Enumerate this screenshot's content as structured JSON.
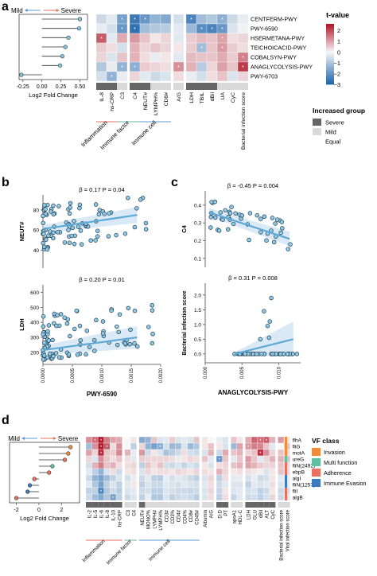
{
  "panels": {
    "a": "a",
    "b": "b",
    "c": "c",
    "d": "d"
  },
  "colors": {
    "heat_high": "#b2182b",
    "heat_mid": "#f7f7f7",
    "heat_low": "#2166ac",
    "severe": "#666666",
    "mild": "#d9d9d9",
    "line_blue": "#5fa9d6",
    "point_fill": "#8ec9e6",
    "band": "#cfe3f3",
    "red_line": "#e8725f",
    "green_line": "#66b8a0",
    "blue_line": "#5b9bd5",
    "vf_invasion": "#f08c3a",
    "vf_multi": "#5fbfa0",
    "vf_adherence": "#e8725f",
    "vf_immune": "#3b7bbf"
  },
  "chart_data": [
    {
      "id": "a_lollipop",
      "type": "scatter",
      "direction_left": "Mild",
      "direction_right": "Severe",
      "xlabel": "Log2 Fold Change",
      "xticks": [
        "-0.25",
        "0.00",
        "0.25",
        "0.50"
      ],
      "xlim": [
        -0.3,
        0.6
      ],
      "values": [
        0.5,
        0.49,
        0.35,
        0.31,
        0.27,
        0.24,
        -0.27
      ]
    },
    {
      "id": "a_heatmap",
      "type": "heatmap",
      "rows": [
        "CENTFERM-PWY",
        "PWY-6590",
        "HSERMETANA-PWY",
        "TEICHOICACID-PWY",
        "COBALSYN-PWY",
        "ANAGLYCOLYSIS-PWY",
        "PWY-6703"
      ],
      "columns": [
        "IL-8",
        "hs-CRP",
        "C3",
        "C4",
        "NEUT#",
        "LYMPH%",
        "CD8#",
        "A/G",
        "LDH",
        "TBIL",
        "dBil",
        "UA",
        "CyC",
        "Bacterial infection score"
      ],
      "col_groups": [
        "Inflammation",
        "Immune factor",
        "Immune cell"
      ],
      "values": [
        [
          -0.6,
          -0.3,
          -1.8,
          -2.6,
          -2.0,
          -1.4,
          -1.6,
          -0.5,
          -2.4,
          -1.2,
          -1.0,
          -1.5,
          -0.6,
          -0.2
        ],
        [
          -0.2,
          -0.5,
          -2.0,
          -2.8,
          -1.2,
          -1.0,
          -0.9,
          -0.3,
          -1.3,
          -2.2,
          -2.4,
          -2.0,
          -0.4,
          -0.1
        ],
        [
          1.8,
          -0.3,
          0.9,
          1.1,
          0.6,
          0.2,
          0.4,
          -0.3,
          0.5,
          0.7,
          0.6,
          1.0,
          0.3,
          0.4
        ],
        [
          0.5,
          0.3,
          -0.5,
          0.8,
          0.4,
          0.6,
          0.4,
          0.2,
          0.5,
          -1.2,
          0.6,
          1.1,
          0.5,
          0.3
        ],
        [
          0.4,
          -0.4,
          0.6,
          0.8,
          0.3,
          -0.2,
          0.2,
          -0.3,
          0.7,
          0.6,
          0.6,
          0.9,
          0.5,
          1.4
        ],
        [
          -1.0,
          -0.2,
          -1.4,
          -1.5,
          0.5,
          0.4,
          0.3,
          1.2,
          0.8,
          -0.9,
          0.4,
          1.0,
          0.6,
          2.2
        ],
        [
          -0.5,
          -1.4,
          -0.2,
          0.4,
          -0.3,
          -0.6,
          -0.4,
          0.3,
          -0.2,
          -0.5,
          0.3,
          0.6,
          -0.4,
          0.4
        ]
      ],
      "stars": [
        [
          0,
          2
        ],
        [
          0,
          3
        ],
        [
          0,
          4
        ],
        [
          0,
          8
        ],
        [
          0,
          11
        ],
        [
          1,
          2
        ],
        [
          1,
          3
        ],
        [
          1,
          9
        ],
        [
          1,
          10
        ],
        [
          1,
          11
        ],
        [
          2,
          0
        ],
        [
          2,
          11
        ],
        [
          3,
          9
        ],
        [
          3,
          11
        ],
        [
          4,
          13
        ],
        [
          5,
          2
        ],
        [
          5,
          3
        ],
        [
          5,
          7
        ],
        [
          5,
          13
        ],
        [
          6,
          1
        ]
      ],
      "legend_title": "t-value",
      "legend_ticks": [
        "2",
        "1",
        "0",
        "−1",
        "−2",
        "−3"
      ],
      "group_bar": [
        "Severe",
        "Severe",
        "Mild",
        "Severe",
        "Severe",
        "Mild",
        "Mild",
        "Mild",
        "Severe",
        "Severe",
        "Severe",
        "Mild",
        "Mild",
        "Mild"
      ]
    },
    {
      "id": "b_top",
      "type": "scatter",
      "annotation": "β = 0.17 P = 0.04",
      "ylabel": "NEUT#",
      "yticks": [
        "40",
        "60",
        "80"
      ],
      "ylim": [
        22,
        95
      ],
      "xlim": [
        0,
        0.002
      ],
      "fit": [
        [
          0,
          61
        ],
        [
          0.0016,
          75
        ]
      ]
    },
    {
      "id": "b_bottom",
      "type": "scatter",
      "annotation": "β = 0.20 P = 0.01",
      "ylabel": "LDH",
      "xlabel": "PWY-6590",
      "yticks": [
        "200",
        "300",
        "400",
        "500",
        "600"
      ],
      "ylim": [
        120,
        650
      ],
      "xticks": [
        "0.0000",
        "0.0005",
        "0.0010",
        "0.0015",
        "0.0020"
      ],
      "xlim": [
        0,
        0.002
      ],
      "fit": [
        [
          0,
          215
        ],
        [
          0.0016,
          300
        ]
      ]
    },
    {
      "id": "c_top",
      "type": "scatter",
      "annotation": "β = -0.45 P = 0.004",
      "ylabel": "C4",
      "yticks": [
        "0.1",
        "0.2",
        "0.3",
        "0.4"
      ],
      "ylim": [
        0.05,
        0.48
      ],
      "xlim": [
        0,
        0.013
      ],
      "fit": [
        [
          0.0005,
          0.36
        ],
        [
          0.0115,
          0.21
        ]
      ]
    },
    {
      "id": "c_bottom",
      "type": "scatter",
      "annotation": "β = 0.31 P = 0.008",
      "ylabel": "Bacterial infection score",
      "xlabel": "ANAGLYCOLYSIS-PWY",
      "yticks": [
        "0.0",
        "0.5",
        "1.0",
        "1.5",
        "2.0"
      ],
      "ylim": [
        -0.3,
        2.4
      ],
      "xticks": [
        "0.000",
        "0.005",
        "0.010"
      ],
      "xlim": [
        0,
        0.013
      ],
      "fit": [
        [
          0.004,
          0.0
        ],
        [
          0.012,
          0.5
        ]
      ]
    },
    {
      "id": "d_lollipop",
      "type": "scatter",
      "direction_left": "Mild",
      "direction_right": "Severe",
      "xlabel": "Log2 Fold Change",
      "xticks": [
        "-2",
        "0",
        "2"
      ],
      "xlim": [
        -2.6,
        3.6
      ],
      "values": [
        2.8,
        2.6,
        2.3,
        1.2,
        0.9,
        -0.4,
        -0.8,
        -1.0,
        -2.0
      ],
      "point_colors": [
        "#f08c3a",
        "#f08c3a",
        "#e8725f",
        "#5fbfa0",
        "#e8725f",
        "#e8725f",
        "#3b7bbf",
        "#3b7bbf",
        "#e8725f"
      ]
    },
    {
      "id": "d_heatmap",
      "type": "heatmap",
      "rows": [
        "flhA",
        "fliG",
        "motA",
        "ureG",
        "fliN(2492)",
        "ebpB",
        "algI",
        "fliN(1257)",
        "fliI",
        "algB"
      ],
      "row_class": [
        "Invasion",
        "Invasion",
        "Invasion",
        "Multi function",
        "Adherence",
        "Adherence",
        "Immune Evasion",
        "Immune Evasion",
        "Adherence",
        "Adherence"
      ],
      "columns": [
        "IL-2",
        "IL-5",
        "IL-6",
        "IL-8",
        "IL-10",
        "hs-CRP",
        "C3",
        "C4",
        "NEUT#",
        "MONO%",
        "LYMPH#",
        "LYMPH%",
        "CD3#",
        "CD3%",
        "CD4#",
        "CD4%",
        "CD8#",
        "CD45#",
        "Albumin",
        "A/G",
        "D-D",
        "PT",
        "apoA1",
        "HDL-C",
        "LDH",
        "GLU",
        "dBil",
        "ALT",
        "CyC",
        "Bacterial infection score",
        "Viral infection score"
      ],
      "col_groups": [
        "Inflammation",
        "Immune factor",
        "Immune cell"
      ],
      "values": [
        [
          1.2,
          1.6,
          2.6,
          1.4,
          1.0,
          0.9,
          0.0,
          0.2,
          -1.6,
          -1.4,
          0.6,
          -0.4,
          -0.3,
          0.5,
          -0.4,
          -0.3,
          -0.4,
          0.6,
          0.2,
          0.0,
          -0.2,
          -0.4,
          0.6,
          0.2,
          0.9,
          1.7,
          1.6,
          1.8,
          0.8,
          1.1,
          0.2
        ],
        [
          -1.2,
          1.2,
          2.6,
          1.8,
          0.3,
          1.2,
          0.0,
          -0.8,
          0.4,
          -1.4,
          -1.8,
          -1.5,
          -0.5,
          -1.3,
          -1.2,
          -0.4,
          -1.3,
          -1.0,
          0.2,
          0.6,
          0.2,
          -0.4,
          -1.3,
          1.0,
          1.1,
          1.4,
          1.3,
          0.6,
          -0.3,
          0.0,
          0.6
        ],
        [
          1.0,
          0.4,
          2.4,
          0.6,
          0.5,
          1.3,
          0.8,
          -0.2,
          1.1,
          -0.6,
          0.2,
          -0.4,
          -1.1,
          -0.9,
          -0.6,
          0.3,
          -0.5,
          -0.6,
          -0.4,
          0.8,
          -0.6,
          0.9,
          0.6,
          0.8,
          0.4,
          0.6,
          2.3,
          1.2,
          0.4,
          0.6,
          0.3
        ],
        [
          0.4,
          -0.4,
          1.2,
          0.6,
          0.3,
          0.6,
          0.3,
          -0.3,
          0.5,
          0.4,
          0.4,
          0.4,
          0.4,
          0.3,
          -0.2,
          0.2,
          0.4,
          0.3,
          0.6,
          -0.3,
          -2.0,
          0.6,
          -0.3,
          0.6,
          1.1,
          0.6,
          -0.3,
          0.4,
          0.8,
          0.8,
          0.7
        ],
        [
          -0.5,
          0.8,
          1.4,
          0.6,
          0.8,
          0.3,
          0.3,
          0.4,
          -0.8,
          0.6,
          0.3,
          0.6,
          -0.5,
          -0.6,
          -0.4,
          -0.7,
          -0.4,
          -0.6,
          0.2,
          -0.4,
          0.3,
          0.4,
          0.6,
          0.8,
          1.0,
          0.8,
          0.5,
          0.4,
          0.4,
          0.6,
          0.3
        ],
        [
          -0.3,
          -0.8,
          -1.4,
          -0.4,
          0.3,
          -0.6,
          0.2,
          0.3,
          -0.4,
          0.4,
          0.2,
          0.3,
          0.3,
          0.2,
          0.4,
          0.3,
          0.2,
          0.4,
          0.3,
          0.2,
          0.8,
          0.4,
          0.2,
          0.3,
          0.3,
          0.2,
          0.1,
          -0.4,
          0.2,
          0.6,
          0.3
        ],
        [
          -0.6,
          -1.4,
          -1.8,
          -1.2,
          -0.8,
          -0.4,
          -0.5,
          -0.2,
          -0.6,
          -0.3,
          -0.8,
          -0.9,
          -0.2,
          -0.5,
          -0.3,
          -0.4,
          -0.6,
          -0.8,
          -0.4,
          0.4,
          -0.8,
          0.3,
          -0.3,
          -0.2,
          -0.5,
          -0.2,
          -0.6,
          -0.5,
          0.2,
          -0.3,
          0.2
        ],
        [
          -0.3,
          -1.0,
          -1.8,
          -0.8,
          -0.4,
          -0.8,
          -0.3,
          0.2,
          -0.8,
          -0.4,
          -0.6,
          -0.6,
          -0.3,
          -0.4,
          -0.5,
          -0.3,
          -0.4,
          -0.5,
          -0.3,
          0.3,
          -0.6,
          -0.3,
          -0.4,
          -0.4,
          -0.8,
          -0.3,
          -0.4,
          -0.3,
          0.3,
          -0.4,
          -0.3
        ],
        [
          -0.8,
          -0.8,
          -2.4,
          -1.0,
          -0.6,
          -0.9,
          -0.4,
          -0.3,
          -0.6,
          -0.5,
          -0.8,
          -0.8,
          -0.4,
          -0.5,
          -0.6,
          -0.6,
          -0.7,
          -0.6,
          -0.4,
          0.4,
          -0.7,
          0.2,
          -0.4,
          -0.3,
          -0.5,
          -0.4,
          -0.8,
          -0.6,
          0.2,
          -0.6,
          -0.5
        ],
        [
          -0.6,
          -1.2,
          -1.6,
          -1.0,
          -1.8,
          -0.8,
          -0.6,
          -0.4,
          -0.8,
          -0.2,
          -1.0,
          -1.0,
          -0.4,
          -0.8,
          -0.6,
          -0.5,
          -0.6,
          -0.9,
          -0.4,
          0.3,
          -0.8,
          0.3,
          -0.7,
          -0.3,
          -0.6,
          -0.5,
          -0.8,
          -0.5,
          0.4,
          -0.6,
          -0.3
        ]
      ],
      "stars": [
        [
          0,
          1
        ],
        [
          0,
          2
        ],
        [
          0,
          26
        ],
        [
          0,
          27
        ],
        [
          1,
          2
        ],
        [
          1,
          3
        ],
        [
          1,
          11
        ],
        [
          1,
          24
        ],
        [
          2,
          2
        ],
        [
          2,
          26
        ],
        [
          3,
          20
        ],
        [
          8,
          2
        ],
        [
          9,
          4
        ]
      ],
      "group_bar": [
        "Severe",
        "Severe",
        "Severe",
        "Severe",
        "Severe",
        "Severe",
        "Mild",
        "Mild",
        "Severe",
        "Mild",
        "Mild",
        "Mild",
        "Mild",
        "Mild",
        "Mild",
        "Mild",
        "Mild",
        "Mild",
        "Mild",
        "Mild",
        "Severe",
        "Severe",
        "Mild",
        "Mild",
        "Severe",
        "Severe",
        "Severe",
        "Severe",
        "Severe",
        "Mild",
        "Mild"
      ]
    }
  ],
  "legend_group": {
    "title": "Increased group",
    "items": [
      "Severe",
      "Mild",
      "Equal"
    ]
  },
  "legend_vf": {
    "title": "VF class",
    "items": [
      "Invasion",
      "Multi function",
      "Adherence",
      "Immune Evasion"
    ]
  }
}
